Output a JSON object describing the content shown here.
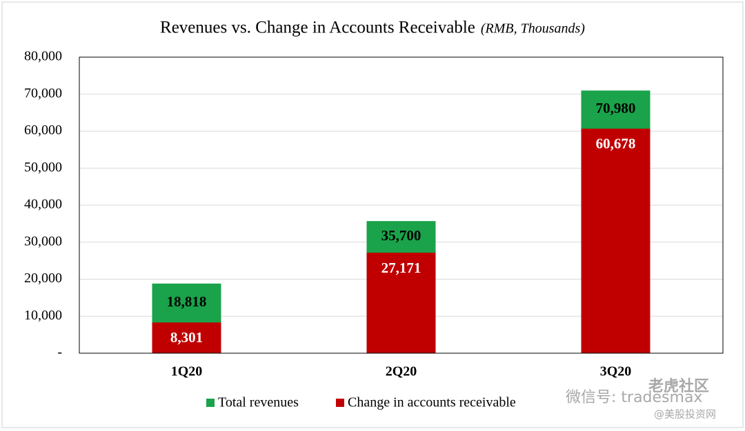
{
  "chart_data": {
    "type": "overlap-bar",
    "title": "Revenues vs. Change in Accounts Receivable",
    "subtitle": "(RMB, Thousands)",
    "categories": [
      "1Q20",
      "2Q20",
      "3Q20"
    ],
    "series": [
      {
        "name": "Total revenues",
        "color": "#1aa34a",
        "values": [
          18818,
          35700,
          70980
        ],
        "value_labels": [
          "18,818",
          "35,700",
          "70,980"
        ],
        "label_color": "#000000"
      },
      {
        "name": "Change in accounts receivable",
        "color": "#c00000",
        "values": [
          8301,
          27171,
          60678
        ],
        "value_labels": [
          "8,301",
          "27,171",
          "60,678"
        ],
        "label_color": "#ffffff"
      }
    ],
    "ylim": [
      0,
      80000
    ],
    "yticks": [
      {
        "value": 0,
        "label": "-"
      },
      {
        "value": 10000,
        "label": "10,000"
      },
      {
        "value": 20000,
        "label": "20,000"
      },
      {
        "value": 30000,
        "label": "30,000"
      },
      {
        "value": 40000,
        "label": "40,000"
      },
      {
        "value": 50000,
        "label": "50,000"
      },
      {
        "value": 60000,
        "label": "60,000"
      },
      {
        "value": 70000,
        "label": "70,000"
      },
      {
        "value": 80000,
        "label": "80,000"
      }
    ],
    "grid": true,
    "legend": "bottom",
    "watermarks": [
      "微信号: tradesmax",
      "老虎社区",
      "@美股投资网"
    ]
  }
}
